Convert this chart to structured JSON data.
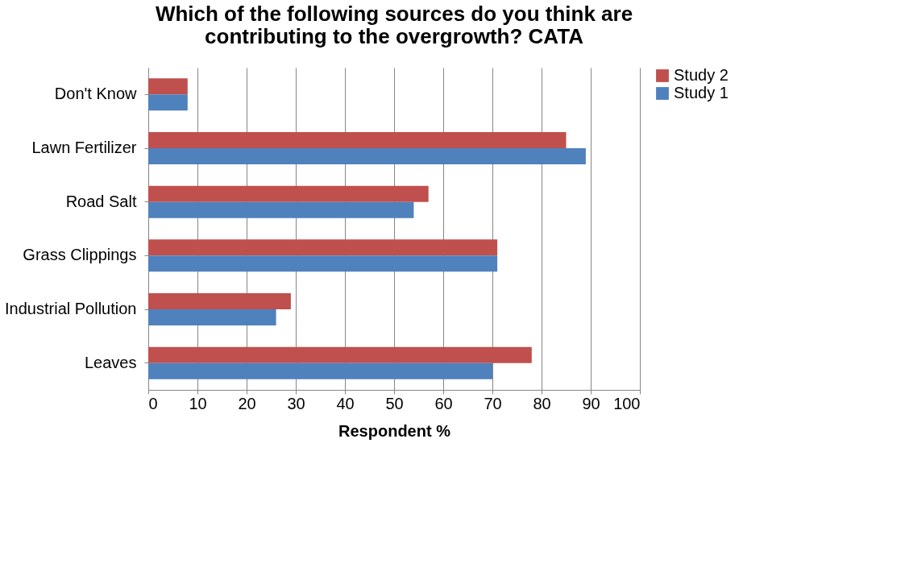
{
  "chart_data": {
    "type": "bar",
    "orientation": "horizontal",
    "title": [
      "Which of the following sources do you think are",
      "contributing to the overgrowth? CATA"
    ],
    "xlabel": "Respondent %",
    "categories": [
      "Don't Know",
      "Lawn Fertilizer",
      "Road Salt",
      "Grass Clippings",
      "Industrial Pollution",
      "Leaves"
    ],
    "series": [
      {
        "name": "Study 2",
        "color": "#c0504d",
        "values": [
          8,
          85,
          57,
          71,
          29,
          78
        ]
      },
      {
        "name": "Study 1",
        "color": "#4f81bd",
        "values": [
          8,
          89,
          54,
          71,
          26,
          70
        ]
      }
    ],
    "xlim": [
      0,
      100
    ],
    "xticks": [
      0,
      10,
      20,
      30,
      40,
      50,
      60,
      70,
      80,
      90,
      100
    ],
    "grid": "x",
    "legend": "right"
  }
}
